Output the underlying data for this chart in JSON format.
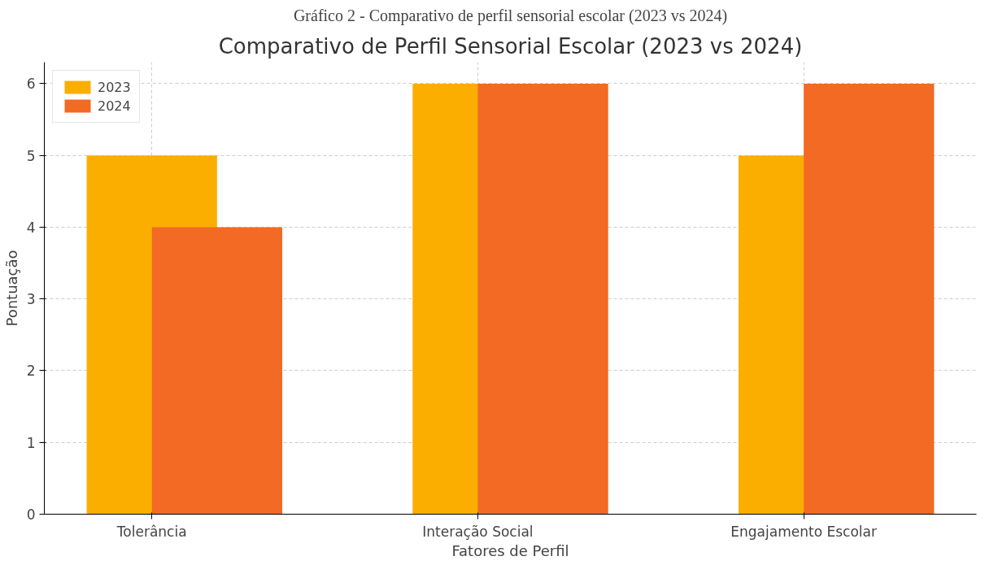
{
  "chart_data": {
    "type": "bar",
    "title": "Comparativo de Perfil Sensorial Escolar (2023 vs 2024)",
    "xlabel": "Fatores de Perfil",
    "ylabel": "Pontuação",
    "annotations": [
      "Gráfico 2 - Comparativo de perfil sensorial escolar (2023 vs 2024)"
    ],
    "categories": [
      "Tolerância",
      "Interação Social",
      "Engajamento Escolar"
    ],
    "series": [
      {
        "name": "2023",
        "color": "#fcae00",
        "values": [
          5,
          6,
          5
        ]
      },
      {
        "name": "2024",
        "color": "#f26a24",
        "values": [
          4,
          6,
          6
        ]
      }
    ],
    "ylim": [
      0,
      6.3
    ],
    "yticks": [
      0,
      1,
      2,
      3,
      4,
      5,
      6
    ],
    "grid": true,
    "legend": "top left"
  }
}
